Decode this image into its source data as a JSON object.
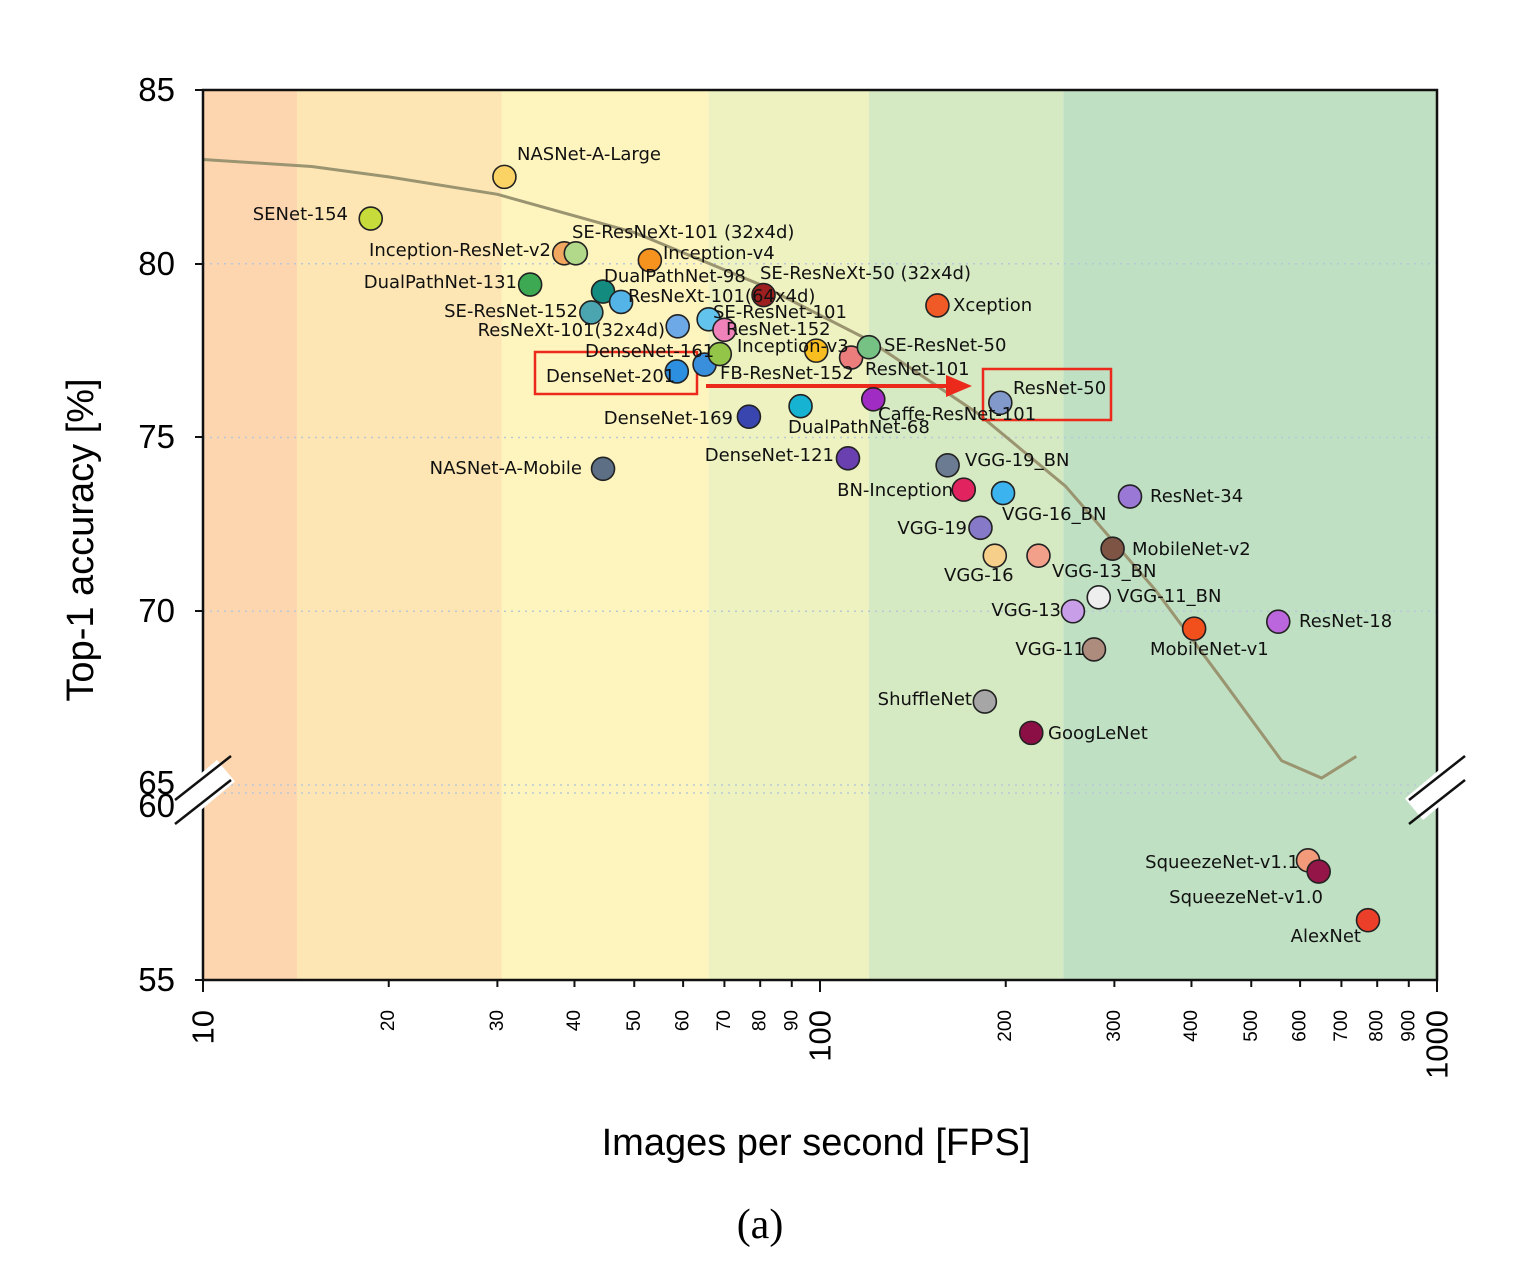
{
  "caption": "(a)",
  "chart_data": {
    "type": "scatter",
    "xlabel": "Images per second [FPS]",
    "ylabel": "Top-1 accuracy [%]",
    "x_scale": "log",
    "xlim": [
      10,
      1000
    ],
    "ylim": [
      55,
      85
    ],
    "y_axis_break": {
      "lower": 60,
      "upper": 65
    },
    "y_ticks": [
      "55",
      "60",
      "65",
      "70",
      "75",
      "80",
      "85"
    ],
    "x_ticks_major": [
      "10",
      "100",
      "1000"
    ],
    "x_ticks_minor": [
      "20",
      "30",
      "40",
      "50",
      "60",
      "70",
      "80",
      "90",
      "200",
      "300",
      "400",
      "500",
      "600",
      "700",
      "800",
      "900"
    ],
    "grid": true,
    "background_bands": [
      {
        "from": 10,
        "to": 14.2,
        "color": "#fdd6b0"
      },
      {
        "from": 14.2,
        "to": 30.5,
        "color": "#fde6b4"
      },
      {
        "from": 30.5,
        "to": 66,
        "color": "#fdf4be"
      },
      {
        "from": 66,
        "to": 120,
        "color": "#eef2c0"
      },
      {
        "from": 120,
        "to": 248,
        "color": "#d5e9c2"
      },
      {
        "from": 248,
        "to": 1000,
        "color": "#bfe0c2"
      }
    ],
    "highlight_arrow": {
      "from": "DenseNet-201",
      "to": "ResNet-50",
      "color": "#ec2a1c"
    },
    "points": [
      {
        "label": "NASNet-A-Large",
        "x": 30.8,
        "y": 82.5,
        "color": "#fbd264"
      },
      {
        "label": "SENet-154",
        "x": 18.7,
        "y": 81.3,
        "color": "#c7dc3a"
      },
      {
        "label": "Inception-ResNet-v2",
        "x": 38.5,
        "y": 80.3,
        "color": "#f2a760"
      },
      {
        "label": "SE-ResNeXt-101 (32x4d)",
        "x": 40.2,
        "y": 80.3,
        "color": "#b2d98a"
      },
      {
        "label": "Inception-v4",
        "x": 53.0,
        "y": 80.1,
        "color": "#f5931e"
      },
      {
        "label": "DualPathNet-131",
        "x": 33.9,
        "y": 79.4,
        "color": "#3da952"
      },
      {
        "label": "DualPathNet-98",
        "x": 44.5,
        "y": 79.2,
        "color": "#138b7f"
      },
      {
        "label": "ResNeXt-101(64x4d)",
        "x": 47.6,
        "y": 78.9,
        "color": "#54b4e8"
      },
      {
        "label": "SE-ResNeXt-50 (32x4d)",
        "x": 81.0,
        "y": 79.1,
        "color": "#9d1f1f"
      },
      {
        "label": "Xception",
        "x": 155.0,
        "y": 78.8,
        "color": "#ef5a26"
      },
      {
        "label": "SE-ResNet-152",
        "x": 42.6,
        "y": 78.6,
        "color": "#4aa5b1"
      },
      {
        "label": "ResNeXt-101(32x4d)",
        "x": 58.8,
        "y": 78.2,
        "color": "#6ca9e6"
      },
      {
        "label": "SE-ResNet-101",
        "x": 66.0,
        "y": 78.4,
        "color": "#62c3ec"
      },
      {
        "label": "ResNet-152",
        "x": 70.0,
        "y": 78.1,
        "color": "#ef82b8"
      },
      {
        "label": "DenseNet-161",
        "x": 65.0,
        "y": 77.1,
        "color": "#3a8fdd"
      },
      {
        "label": "Inception-v3",
        "x": 68.8,
        "y": 77.4,
        "color": "#93c648"
      },
      {
        "label": "FB-ResNet-152",
        "x": 98.6,
        "y": 77.5,
        "color": "#f8bd1e"
      },
      {
        "label": "ResNet-101",
        "x": 112.3,
        "y": 77.3,
        "color": "#eb7d7d"
      },
      {
        "label": "SE-ResNet-50",
        "x": 120.0,
        "y": 77.6,
        "color": "#76c285"
      },
      {
        "label": "DenseNet-201",
        "x": 58.6,
        "y": 76.9,
        "color": "#2d8fe0"
      },
      {
        "label": "ResNet-50",
        "x": 196.0,
        "y": 76.0,
        "color": "#8299cb"
      },
      {
        "label": "Caffe-ResNet-101",
        "x": 122.0,
        "y": 76.1,
        "color": "#a02cc3"
      },
      {
        "label": "DualPathNet-68",
        "x": 93.0,
        "y": 75.9,
        "color": "#16b4d2"
      },
      {
        "label": "DenseNet-169",
        "x": 76.7,
        "y": 75.6,
        "color": "#3a46b0"
      },
      {
        "label": "DenseNet-121",
        "x": 111.0,
        "y": 74.4,
        "color": "#6a3fb0"
      },
      {
        "label": "NASNet-A-Mobile",
        "x": 44.5,
        "y": 74.1,
        "color": "#5c6f84"
      },
      {
        "label": "VGG-19_BN",
        "x": 161.0,
        "y": 74.2,
        "color": "#6b7c92"
      },
      {
        "label": "BN-Inception",
        "x": 171.0,
        "y": 73.5,
        "color": "#e1235f"
      },
      {
        "label": "VGG-16_BN",
        "x": 198.0,
        "y": 73.4,
        "color": "#3ab3ee"
      },
      {
        "label": "ResNet-34",
        "x": 318.0,
        "y": 73.3,
        "color": "#9a78d6"
      },
      {
        "label": "VGG-19",
        "x": 182.0,
        "y": 72.4,
        "color": "#8679c8"
      },
      {
        "label": "VGG-16",
        "x": 192.0,
        "y": 71.6,
        "color": "#f6cf8a"
      },
      {
        "label": "VGG-13_BN",
        "x": 226.0,
        "y": 71.6,
        "color": "#f3a08a"
      },
      {
        "label": "MobileNet-v2",
        "x": 298.0,
        "y": 71.8,
        "color": "#7e5544"
      },
      {
        "label": "VGG-11_BN",
        "x": 283.0,
        "y": 70.4,
        "color": "#eeeeee"
      },
      {
        "label": "VGG-13",
        "x": 257.0,
        "y": 70.0,
        "color": "#c89ee8"
      },
      {
        "label": "ResNet-18",
        "x": 553.0,
        "y": 69.7,
        "color": "#bb66dc"
      },
      {
        "label": "MobileNet-v1",
        "x": 404.0,
        "y": 69.5,
        "color": "#f14f1c"
      },
      {
        "label": "VGG-11",
        "x": 278.0,
        "y": 68.9,
        "color": "#ae8c7d"
      },
      {
        "label": "ShuffleNet",
        "x": 185.0,
        "y": 67.4,
        "color": "#a6a6a6"
      },
      {
        "label": "GoogLeNet",
        "x": 220.0,
        "y": 66.5,
        "color": "#8b0f45"
      },
      {
        "label": "SqueezeNet-v1.1",
        "x": 618.0,
        "y": 58.2,
        "color": "#f39a7a"
      },
      {
        "label": "SqueezeNet-v1.0",
        "x": 643.0,
        "y": 57.9,
        "color": "#941547"
      },
      {
        "label": "AlexNet",
        "x": 773.0,
        "y": 56.6,
        "color": "#ec3f2a"
      }
    ]
  }
}
